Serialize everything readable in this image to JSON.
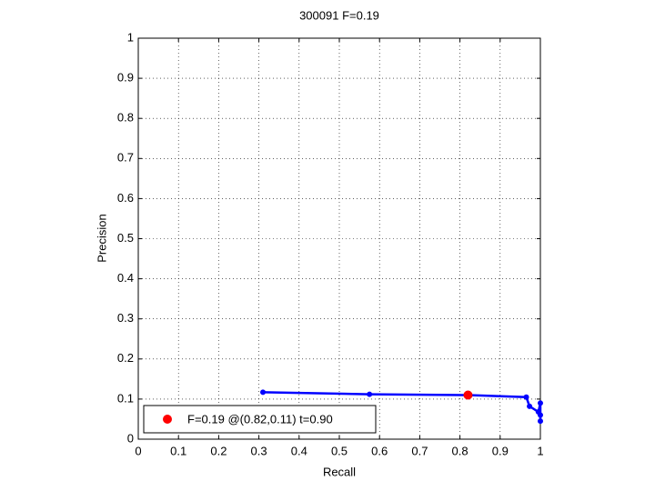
{
  "chart_data": {
    "type": "line",
    "title": "300091 F=0.19",
    "x_label": "Recall",
    "y_label": "Precision",
    "series": [
      {
        "type": "line",
        "color": "#0000ff",
        "x": [
          0.31,
          0.575,
          0.82,
          0.965,
          0.973,
          0.995,
          1.0,
          1.0,
          1.0
        ],
        "values": [
          0.117,
          0.112,
          0.11,
          0.105,
          0.082,
          0.068,
          0.09,
          0.06,
          0.045
        ]
      },
      {
        "type": "scatter",
        "name": "F=0.19 @(0.82,0.11) t=0.90",
        "color": "#ff0000",
        "x": [
          0.82
        ],
        "values": [
          0.11
        ]
      }
    ],
    "xlim": [
      0,
      1
    ],
    "ylim": [
      0,
      1
    ],
    "xticks": [
      0,
      0.1,
      0.2,
      0.3,
      0.4,
      0.5,
      0.6,
      0.7,
      0.8,
      0.9,
      1
    ],
    "yticks": [
      0,
      0.1,
      0.2,
      0.3,
      0.4,
      0.5,
      0.6,
      0.7,
      0.8,
      0.9,
      1
    ],
    "grid": true,
    "legend_position": "lower left"
  }
}
